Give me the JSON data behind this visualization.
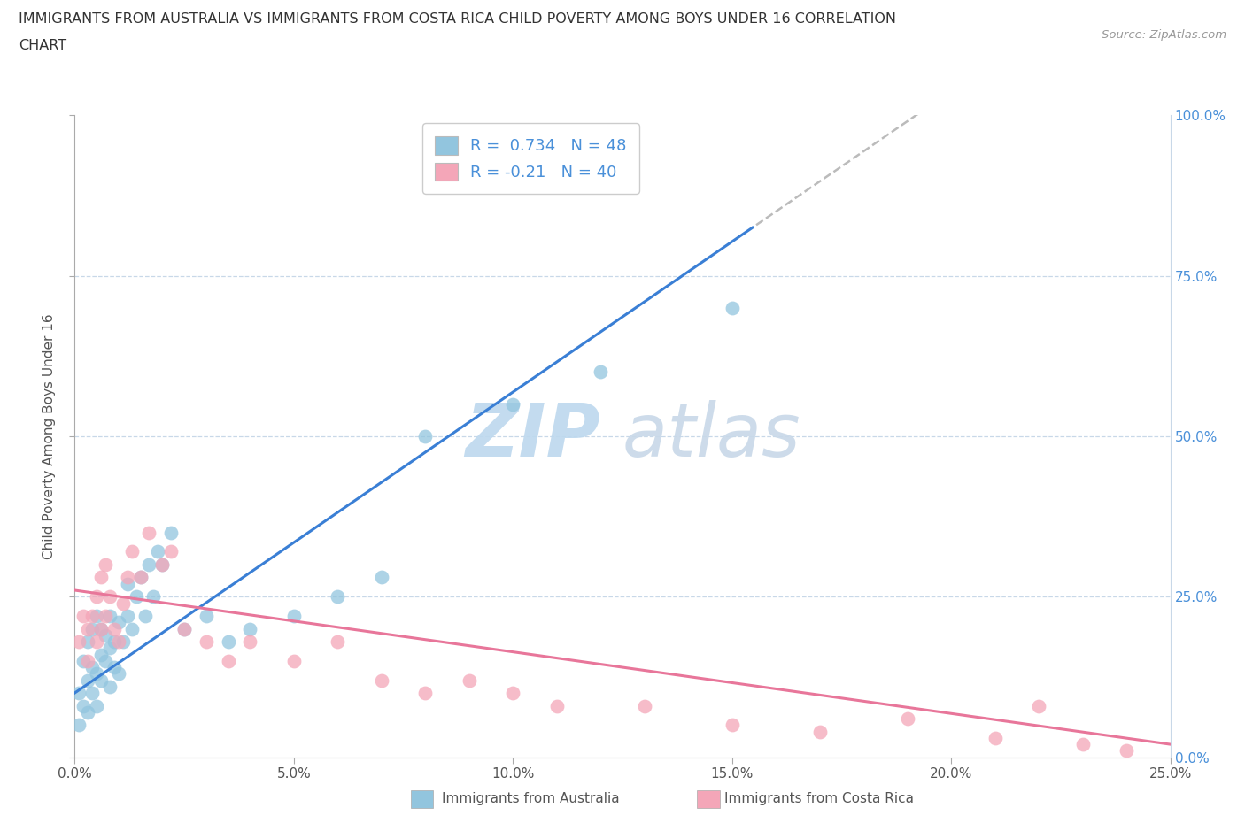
{
  "title_line1": "IMMIGRANTS FROM AUSTRALIA VS IMMIGRANTS FROM COSTA RICA CHILD POVERTY AMONG BOYS UNDER 16 CORRELATION",
  "title_line2": "CHART",
  "source_text": "Source: ZipAtlas.com",
  "ylabel": "Child Poverty Among Boys Under 16",
  "legend_label_aus": "Immigrants from Australia",
  "legend_label_cr": "Immigrants from Costa Rica",
  "R_aus": 0.734,
  "N_aus": 48,
  "R_cr": -0.21,
  "N_cr": 40,
  "xlim": [
    0.0,
    0.25
  ],
  "ylim": [
    0.0,
    1.0
  ],
  "xticks": [
    0.0,
    0.05,
    0.1,
    0.15,
    0.2,
    0.25
  ],
  "yticks": [
    0.0,
    0.25,
    0.5,
    0.75,
    1.0
  ],
  "color_aus": "#92C5DE",
  "color_cr": "#F4A6B8",
  "trend_color_aus": "#3A7FD5",
  "trend_color_cr": "#E8769A",
  "dash_color": "#BBBBBB",
  "watermark_zip": "ZIP",
  "watermark_atlas": "atlas",
  "watermark_color": "#C8E0F0",
  "aus_x": [
    0.001,
    0.001,
    0.002,
    0.002,
    0.003,
    0.003,
    0.003,
    0.004,
    0.004,
    0.004,
    0.005,
    0.005,
    0.005,
    0.006,
    0.006,
    0.006,
    0.007,
    0.007,
    0.008,
    0.008,
    0.008,
    0.009,
    0.009,
    0.01,
    0.01,
    0.011,
    0.012,
    0.012,
    0.013,
    0.014,
    0.015,
    0.016,
    0.017,
    0.018,
    0.019,
    0.02,
    0.022,
    0.025,
    0.03,
    0.035,
    0.04,
    0.05,
    0.06,
    0.07,
    0.08,
    0.1,
    0.12,
    0.15
  ],
  "aus_y": [
    0.05,
    0.1,
    0.08,
    0.15,
    0.07,
    0.12,
    0.18,
    0.1,
    0.14,
    0.2,
    0.08,
    0.13,
    0.22,
    0.12,
    0.16,
    0.2,
    0.15,
    0.19,
    0.11,
    0.17,
    0.22,
    0.14,
    0.18,
    0.13,
    0.21,
    0.18,
    0.22,
    0.27,
    0.2,
    0.25,
    0.28,
    0.22,
    0.3,
    0.25,
    0.32,
    0.3,
    0.35,
    0.2,
    0.22,
    0.18,
    0.2,
    0.22,
    0.25,
    0.28,
    0.5,
    0.55,
    0.6,
    0.7
  ],
  "cr_x": [
    0.001,
    0.002,
    0.003,
    0.003,
    0.004,
    0.005,
    0.005,
    0.006,
    0.006,
    0.007,
    0.007,
    0.008,
    0.009,
    0.01,
    0.011,
    0.012,
    0.013,
    0.015,
    0.017,
    0.02,
    0.022,
    0.025,
    0.03,
    0.035,
    0.04,
    0.05,
    0.06,
    0.07,
    0.08,
    0.09,
    0.1,
    0.11,
    0.13,
    0.15,
    0.17,
    0.19,
    0.21,
    0.22,
    0.23,
    0.24
  ],
  "cr_y": [
    0.18,
    0.22,
    0.15,
    0.2,
    0.22,
    0.25,
    0.18,
    0.2,
    0.28,
    0.22,
    0.3,
    0.25,
    0.2,
    0.18,
    0.24,
    0.28,
    0.32,
    0.28,
    0.35,
    0.3,
    0.32,
    0.2,
    0.18,
    0.15,
    0.18,
    0.15,
    0.18,
    0.12,
    0.1,
    0.12,
    0.1,
    0.08,
    0.08,
    0.05,
    0.04,
    0.06,
    0.03,
    0.08,
    0.02,
    0.01
  ]
}
